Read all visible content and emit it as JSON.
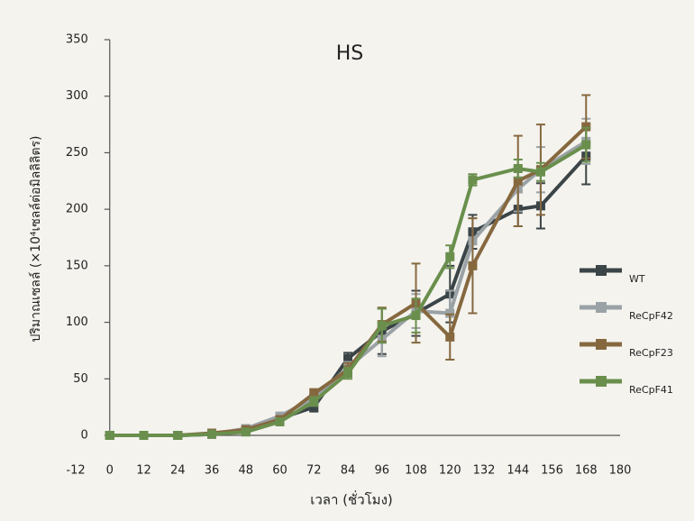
{
  "chart_data": {
    "type": "line",
    "title": "HS",
    "x_label": "เวลา (ชั่วโมง)",
    "y_label": "ปริมาณเซลล์ (×10⁴เซลล์ต่อมิลลิลิตร)",
    "x": [
      0,
      12,
      24,
      36,
      48,
      60,
      72,
      84,
      96,
      108,
      120,
      128,
      144,
      152,
      168
    ],
    "xlim": [
      -12,
      180
    ],
    "xticks": [
      -12,
      0,
      12,
      24,
      36,
      48,
      60,
      72,
      84,
      96,
      108,
      120,
      132,
      144,
      156,
      168,
      180
    ],
    "ylim": [
      0,
      350
    ],
    "yticks": [
      0,
      50,
      100,
      150,
      200,
      250,
      300,
      350
    ],
    "legend": "right",
    "series": [
      {
        "name": "WT",
        "color": "#3b4447",
        "values": [
          0,
          0,
          0,
          1,
          5,
          15,
          25,
          68,
          92,
          108,
          125,
          180,
          200,
          203,
          247
        ],
        "errors": [
          1,
          1,
          1,
          1,
          2,
          3,
          4,
          5,
          20,
          20,
          25,
          15,
          15,
          20,
          25
        ]
      },
      {
        "name": "ReCpF42",
        "color": "#9aa2a5",
        "values": [
          0,
          0,
          0,
          1,
          6,
          17,
          33,
          60,
          85,
          110,
          108,
          172,
          218,
          235,
          260
        ],
        "errors": [
          1,
          1,
          1,
          1,
          2,
          3,
          4,
          5,
          15,
          15,
          20,
          20,
          20,
          20,
          20
        ]
      },
      {
        "name": "ReCpF23",
        "color": "#86683f",
        "values": [
          0,
          0,
          0,
          2,
          5,
          14,
          37,
          58,
          98,
          117,
          87,
          150,
          225,
          235,
          273
        ],
        "errors": [
          1,
          1,
          1,
          1,
          2,
          3,
          4,
          6,
          15,
          35,
          20,
          42,
          40,
          40,
          28
        ]
      },
      {
        "name": "ReCpF41",
        "color": "#6a8f4d",
        "values": [
          0,
          0,
          0,
          1,
          3,
          12,
          30,
          55,
          97,
          106,
          158,
          226,
          236,
          233,
          257
        ],
        "errors": [
          1,
          1,
          1,
          1,
          2,
          3,
          4,
          5,
          15,
          15,
          10,
          5,
          8,
          8,
          15
        ]
      }
    ]
  }
}
